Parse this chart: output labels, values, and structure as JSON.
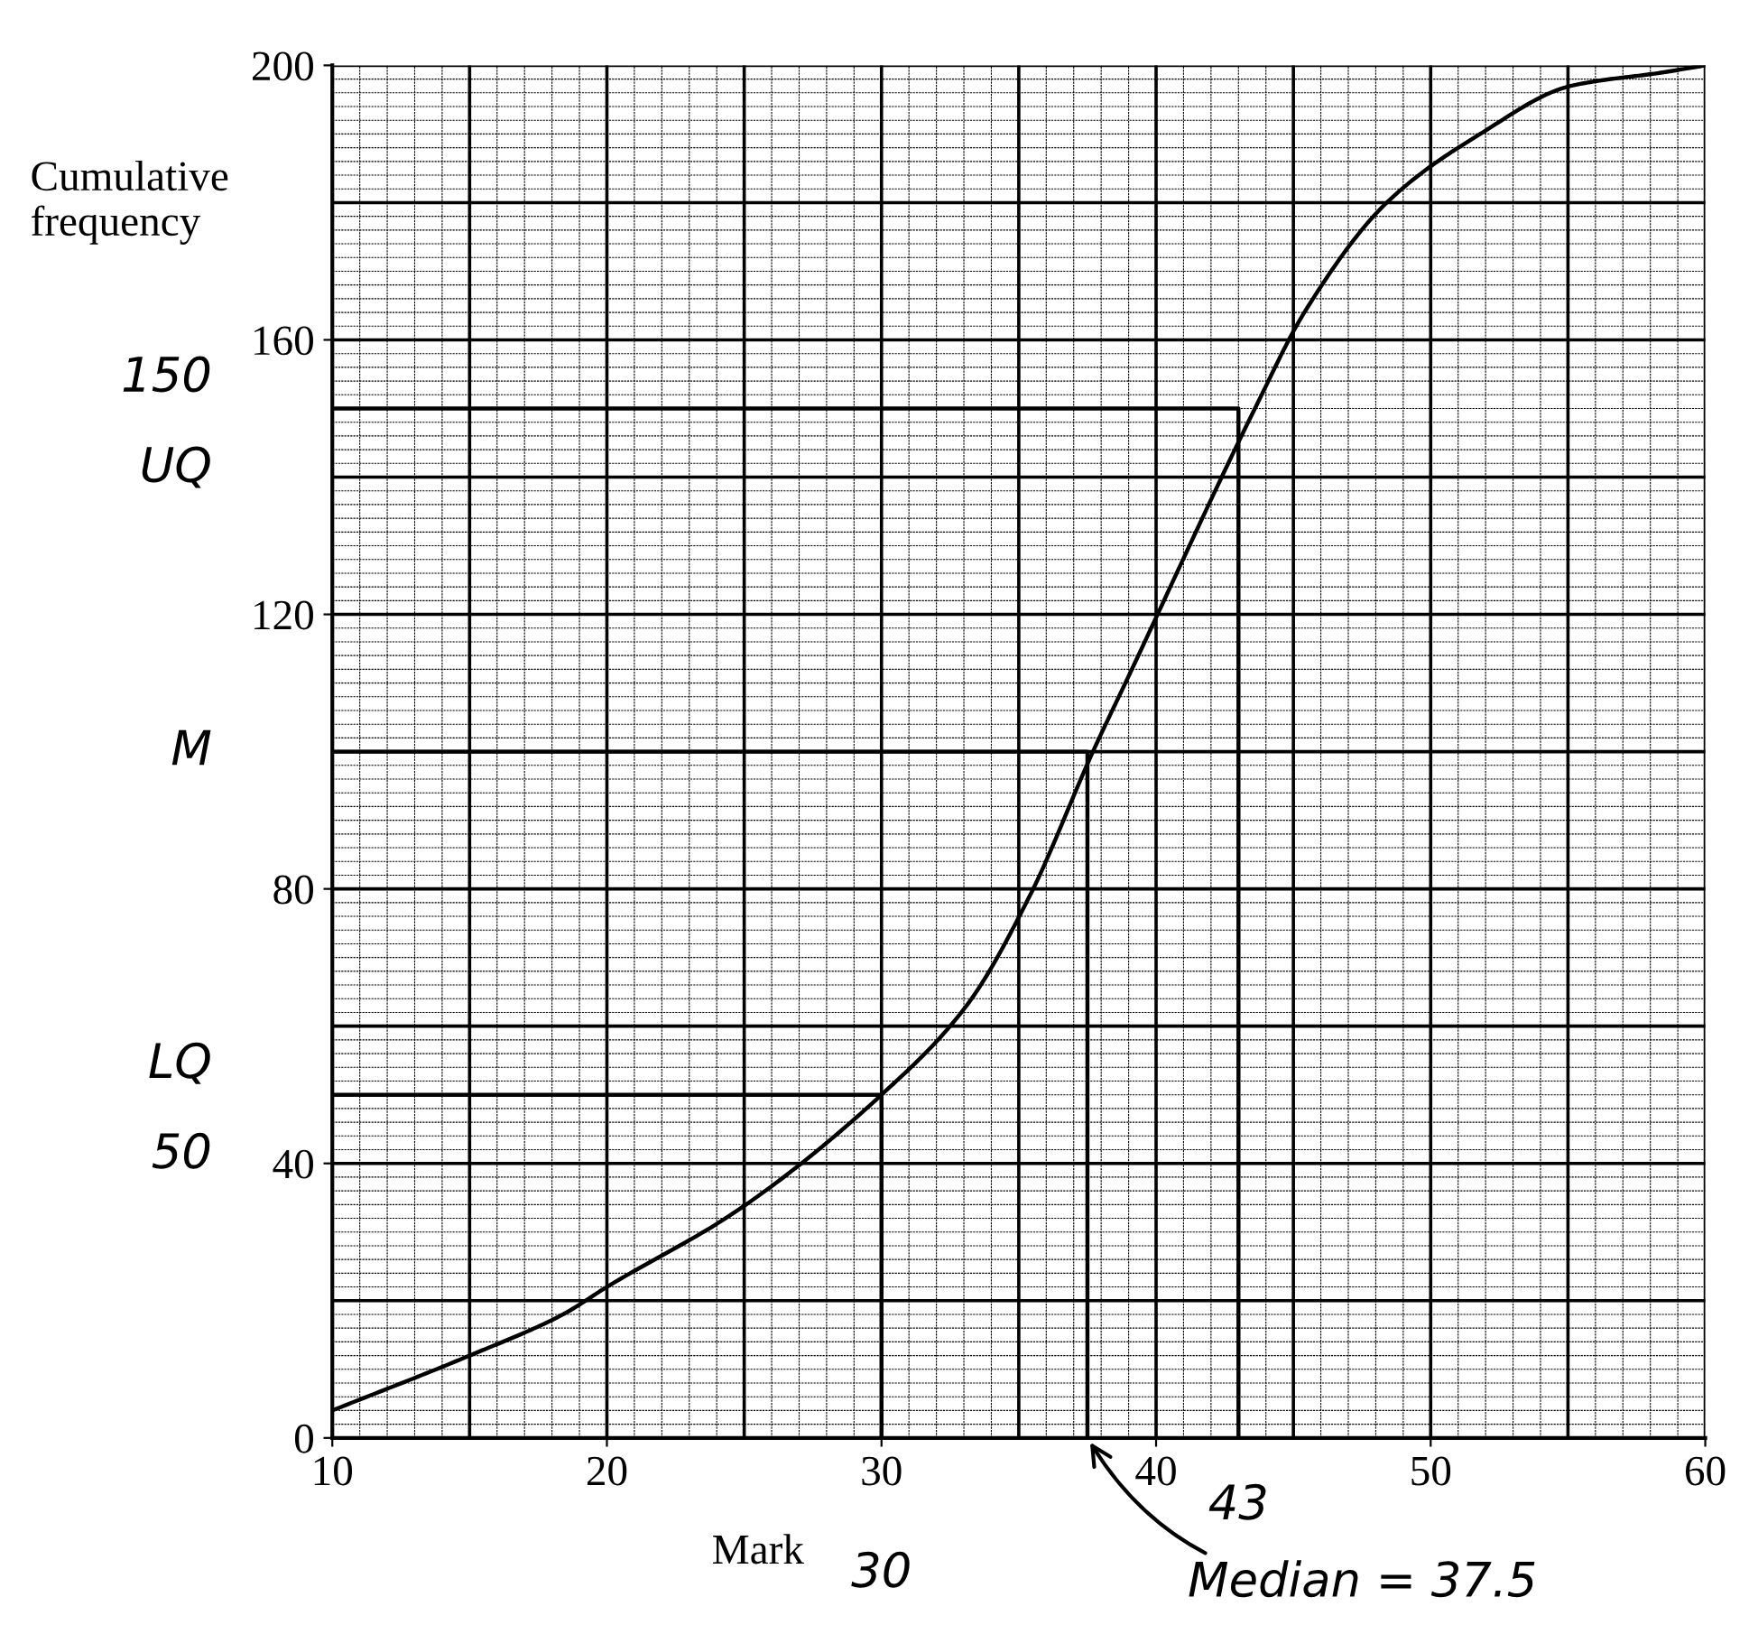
{
  "chart_data": {
    "type": "line",
    "xlabel": "Mark",
    "ylabel": "Cumulative\nfrequency",
    "xlim": [
      10,
      60
    ],
    "ylim": [
      0,
      200
    ],
    "xticks": [
      10,
      20,
      30,
      40,
      50,
      60
    ],
    "yticks": [
      0,
      40,
      80,
      120,
      160,
      200
    ],
    "grid": true,
    "marker": "none",
    "line_style": "solid",
    "series": [
      {
        "color": "#000000",
        "x": [
          10,
          15,
          18.4,
          20,
          24.7,
          30,
          33.1,
          35.4,
          37.7,
          39,
          43.6,
          45.4,
          48.4,
          51.8,
          55.1,
          58.5,
          60
        ],
        "values": [
          4,
          12,
          18,
          22,
          33,
          50,
          63,
          79,
          100,
          111,
          150,
          164,
          180,
          190,
          197,
          199,
          200
        ]
      },
      {
        "color": "#000000",
        "x": [
          10,
          30,
          30
        ],
        "values": [
          50,
          50,
          0
        ]
      },
      {
        "color": "#000000",
        "x": [
          10,
          37.5,
          37.5
        ],
        "values": [
          100,
          100,
          0
        ]
      },
      {
        "color": "#000000",
        "x": [
          10,
          43,
          43
        ],
        "values": [
          150,
          150,
          0
        ]
      }
    ],
    "annotations": [
      {
        "text": "150",
        "x": 10,
        "y": 150
      },
      {
        "text": "UQ",
        "x": 10,
        "y": 150
      },
      {
        "text": "M",
        "x": 10,
        "y": 100
      },
      {
        "text": "LQ",
        "x": 10,
        "y": 50
      },
      {
        "text": "50",
        "x": 10,
        "y": 50
      },
      {
        "text": "30",
        "x": 30,
        "y": 0
      },
      {
        "text": "43",
        "x": 43,
        "y": 0
      },
      {
        "text": "Median = 37.5",
        "x": 37.5,
        "y": 0
      }
    ]
  }
}
